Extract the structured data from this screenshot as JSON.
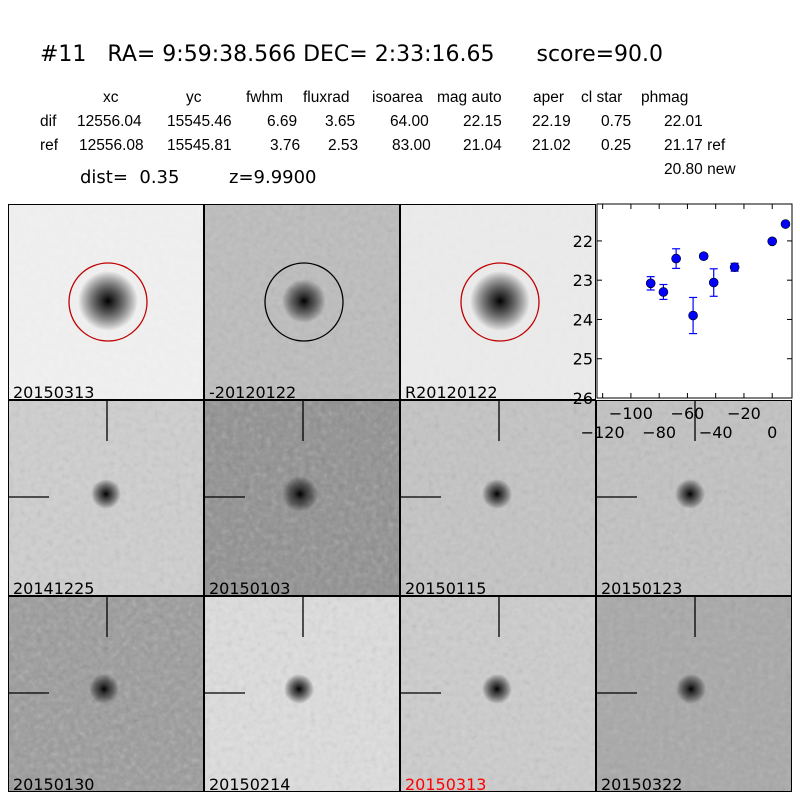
{
  "title": {
    "id": "#11",
    "ra": "RA= 9:59:38.566",
    "dec": "DEC= 2:33:16.65",
    "score": "score=90.0"
  },
  "table": {
    "headers": [
      "xc",
      "yc",
      "fwhm",
      "fluxrad",
      "isoarea",
      "mag auto",
      "aper",
      "cl star",
      "phmag"
    ],
    "rows": [
      {
        "label": "dif",
        "values": [
          "12556.04",
          "15545.46",
          "6.69",
          "3.65",
          "64.00",
          "22.15",
          "22.19",
          "0.75",
          "22.01"
        ]
      },
      {
        "label": "ref",
        "values": [
          "12556.08",
          "15545.81",
          "3.76",
          "2.53",
          "83.00",
          "21.04",
          "21.02",
          "0.25",
          "21.17 ref"
        ]
      }
    ],
    "extra": "20.80 new"
  },
  "dist": "dist=  0.35",
  "z": "z=9.9900",
  "panels": [
    {
      "label": "20150313",
      "color": "#000000"
    },
    {
      "label": "-20120122",
      "color": "#000000"
    },
    {
      "label": "R20120122",
      "color": "#000000"
    },
    {
      "label": "20141225",
      "color": "#000000"
    },
    {
      "label": "20150103",
      "color": "#000000"
    },
    {
      "label": "20150115",
      "color": "#000000"
    },
    {
      "label": "20150123",
      "color": "#000000"
    },
    {
      "label": "20150130",
      "color": "#000000"
    },
    {
      "label": "20150214",
      "color": "#000000"
    },
    {
      "label": "20150313",
      "color": "#ff0000"
    },
    {
      "label": "20150322",
      "color": "#000000"
    }
  ],
  "chart_data": {
    "type": "scatter",
    "title": "",
    "xlabel": "",
    "ylabel": "",
    "xlim": [
      -124,
      14
    ],
    "ylim": [
      26,
      21.06
    ],
    "y_inverted": true,
    "xticks": [
      -120,
      -100,
      -80,
      -60,
      -40,
      -20,
      0
    ],
    "xtick_labels": [
      "−120",
      "−100",
      "−80",
      "−60",
      "−40",
      "−20",
      "0"
    ],
    "yticks": [
      22,
      23,
      24,
      25,
      26
    ],
    "ytick_labels": [
      "22",
      "23",
      "24",
      "25",
      "26"
    ],
    "grid": false,
    "color": "#0000ff",
    "points": [
      {
        "x": -86,
        "y": 23.08,
        "err": 0.17
      },
      {
        "x": -77,
        "y": 23.3,
        "err": 0.19
      },
      {
        "x": -68,
        "y": 22.45,
        "err": 0.25
      },
      {
        "x": -56,
        "y": 23.9,
        "err": 0.46
      },
      {
        "x": -48.5,
        "y": 22.39,
        "err": 0.06
      },
      {
        "x": -41.4,
        "y": 23.06,
        "err": 0.35
      },
      {
        "x": -26.6,
        "y": 22.67,
        "err": 0.1
      },
      {
        "x": 0,
        "y": 22.01,
        "err": 0.03
      },
      {
        "x": 9.4,
        "y": 21.57,
        "err": 0.02
      }
    ]
  }
}
